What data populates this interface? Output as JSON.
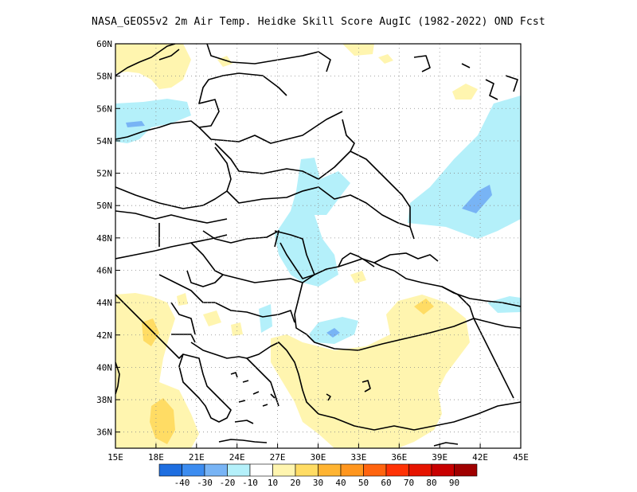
{
  "title": "NASA_GEOS5v2  2m Air Temp. Heidke Skill Score AugIC (1982-2022) OND Fcst",
  "map": {
    "lon_range": [
      15,
      45
    ],
    "lat_range": [
      35,
      60
    ],
    "x_ticks": [
      "15E",
      "18E",
      "21E",
      "24E",
      "27E",
      "30E",
      "33E",
      "36E",
      "39E",
      "42E",
      "45E"
    ],
    "y_ticks": [
      "36N",
      "38N",
      "40N",
      "42N",
      "44N",
      "46N",
      "48N",
      "50N",
      "52N",
      "54N",
      "56N",
      "58N",
      "60N"
    ],
    "grid": "dotted"
  },
  "colorbar": {
    "labels": [
      "-40",
      "-30",
      "-20",
      "-10",
      "10",
      "20",
      "30",
      "40",
      "50",
      "60",
      "70",
      "80",
      "90"
    ],
    "colors": [
      "#1e6ee0",
      "#3c8cf0",
      "#78b4f5",
      "#b4f0fa",
      "#ffffff",
      "#fff5af",
      "#ffdc64",
      "#ffb432",
      "#ff961e",
      "#ff640f",
      "#ff3205",
      "#e61400",
      "#c80000",
      "#a00000"
    ]
  },
  "regions": [
    {
      "name": "anomaly-light-blue-north",
      "lon": [
        15,
        17
      ],
      "lat": [
        54,
        56
      ],
      "value": -10
    },
    {
      "name": "anomaly-light-blue-east",
      "lon": [
        39,
        45
      ],
      "lat": [
        48,
        54
      ],
      "value": -10
    },
    {
      "name": "anomaly-blue-core-east",
      "lon": [
        41,
        42
      ],
      "lat": [
        49.5,
        50.5
      ],
      "value": -20
    },
    {
      "name": "anomaly-light-blue-ukraine",
      "lon": [
        27,
        31
      ],
      "lat": [
        45,
        52
      ],
      "value": -10
    },
    {
      "name": "anomaly-light-blue-blacksea",
      "lon": [
        29,
        33
      ],
      "lat": [
        41.5,
        43
      ],
      "value": -10
    },
    {
      "name": "anomaly-light-yellow-turkey",
      "lon": [
        33,
        40
      ],
      "lat": [
        37,
        45
      ],
      "value": 10
    },
    {
      "name": "anomaly-light-yellow-greece",
      "lon": [
        17,
        21
      ],
      "lat": [
        35,
        42
      ],
      "value": 10
    },
    {
      "name": "anomaly-light-yellow-north",
      "lon": [
        15,
        19
      ],
      "lat": [
        58,
        60
      ],
      "value": 10
    },
    {
      "name": "anomaly-light-yellow-anatolia",
      "lon": [
        28,
        35
      ],
      "lat": [
        35,
        41
      ],
      "value": 10
    }
  ]
}
